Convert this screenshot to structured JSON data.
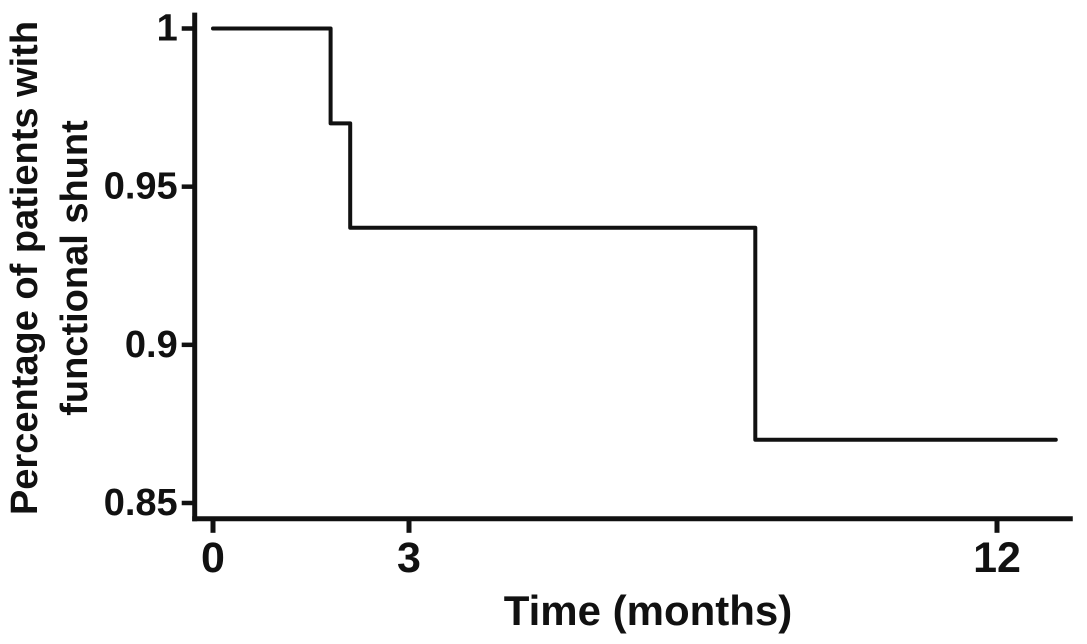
{
  "figure": {
    "background_color": "#ffffff",
    "ink_color": "#111111"
  },
  "chart_data": {
    "type": "line",
    "subtype": "kaplan-meier-survival-step",
    "title": "",
    "xlabel": "Time (months)",
    "ylabel": "Percentage of patients with functional shunt",
    "ylabel_line1": "Percentage of patients with",
    "ylabel_line2": "functional shunt",
    "xlim": [
      -0.28,
      13.16
    ],
    "ylim": [
      0.845,
      1.005
    ],
    "xticks": [
      0,
      3,
      12
    ],
    "xtick_labels": [
      "0",
      "3",
      "12"
    ],
    "yticks": [
      1,
      0.95,
      0.9,
      0.85
    ],
    "ytick_labels": [
      "1",
      "0.95",
      "0.9",
      "0.85"
    ],
    "grid": false,
    "legend": "none",
    "line_color": "#111111",
    "series": [
      {
        "name": "patients-with-functional-shunt",
        "start_survival": 1.0,
        "curve_end_time": 12.9,
        "drop_events": [
          {
            "time": 1.8,
            "survival_after": 0.97
          },
          {
            "time": 2.1,
            "survival_after": 0.937
          },
          {
            "time": 8.3,
            "survival_after": 0.87
          }
        ],
        "step_points": [
          {
            "x": 0,
            "y": 1.0
          },
          {
            "x": 1.8,
            "y": 1.0
          },
          {
            "x": 1.8,
            "y": 0.97
          },
          {
            "x": 2.1,
            "y": 0.97
          },
          {
            "x": 2.1,
            "y": 0.937
          },
          {
            "x": 8.3,
            "y": 0.937
          },
          {
            "x": 8.3,
            "y": 0.87
          },
          {
            "x": 12.9,
            "y": 0.87
          }
        ]
      }
    ]
  }
}
